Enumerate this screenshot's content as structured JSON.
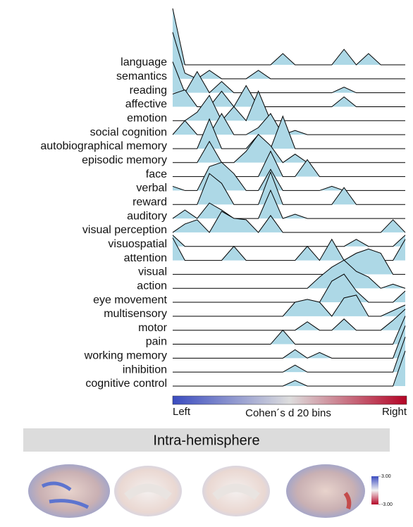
{
  "chart_data": {
    "type": "ridgeline",
    "fill_color": "#add8e6",
    "line_color": "#000000",
    "x_label_left": "Left",
    "x_label": "Cohen´s d 20 bins",
    "x_label_right": "Right",
    "series": [
      {
        "name": "language",
        "values": [
          4,
          0,
          0,
          0,
          0,
          0,
          0,
          0,
          0,
          0.8,
          0,
          0,
          0,
          0,
          1.1,
          0,
          0.8,
          0,
          0,
          0
        ]
      },
      {
        "name": "semantics",
        "values": [
          3.3,
          0.4,
          0,
          0.6,
          0,
          0,
          0,
          0.6,
          0,
          0,
          0,
          0,
          0,
          0,
          0,
          0,
          0,
          0,
          0,
          0
        ]
      },
      {
        "name": "reading",
        "values": [
          2.2,
          0,
          1.5,
          0,
          0.8,
          0,
          0,
          0,
          0,
          0,
          0,
          0,
          0,
          0,
          0.4,
          0,
          0,
          0,
          0,
          0
        ]
      },
      {
        "name": "affective",
        "values": [
          0.9,
          1.2,
          0,
          0,
          1.1,
          0,
          1.5,
          0,
          0,
          0,
          0,
          0,
          0,
          0,
          0.7,
          0,
          0,
          0,
          0,
          0
        ]
      },
      {
        "name": "emotion",
        "values": [
          0,
          0,
          0.6,
          1.8,
          0,
          1,
          0,
          2.1,
          0,
          0,
          0,
          0,
          0,
          0,
          0,
          0,
          0,
          0,
          0,
          0
        ]
      },
      {
        "name": "social cognition",
        "values": [
          0,
          1,
          0,
          0,
          1.5,
          0,
          0,
          0.5,
          1.5,
          0,
          0.3,
          0,
          0,
          0,
          0,
          0,
          0,
          0,
          0,
          0
        ]
      },
      {
        "name": "autobiographical memory",
        "values": [
          0,
          0,
          0,
          2.1,
          0,
          0,
          0,
          1,
          0,
          2.3,
          0,
          0,
          0,
          0,
          0,
          0,
          0,
          0,
          0,
          0
        ]
      },
      {
        "name": "episodic memory",
        "values": [
          0,
          0,
          0,
          1.5,
          0,
          0,
          0.8,
          2,
          1.2,
          0,
          0.6,
          0,
          0,
          0,
          0,
          0,
          0,
          0,
          0,
          0
        ]
      },
      {
        "name": "face",
        "values": [
          0,
          0,
          0,
          0,
          1,
          0,
          0,
          0,
          1.8,
          0,
          0,
          1.2,
          0,
          0,
          0,
          0,
          0,
          0,
          0,
          0
        ]
      },
      {
        "name": "verbal",
        "values": [
          0.3,
          0,
          0,
          1.7,
          2,
          1.2,
          0,
          0,
          1.5,
          0,
          0,
          0,
          0,
          0.3,
          0,
          0,
          0,
          0,
          0,
          0
        ]
      },
      {
        "name": "reward",
        "values": [
          0,
          0,
          0,
          2.2,
          1.5,
          0,
          0,
          0,
          2.3,
          0,
          0,
          0,
          0,
          0,
          1.2,
          0,
          0,
          0,
          0,
          0
        ]
      },
      {
        "name": "auditory",
        "values": [
          0,
          0.6,
          0,
          1.1,
          0.6,
          0,
          0,
          0,
          2,
          0,
          0.3,
          0,
          0,
          0,
          0,
          0,
          0,
          0,
          0,
          0
        ]
      },
      {
        "name": "visual perception",
        "values": [
          0,
          0.6,
          0.9,
          0,
          1.5,
          1,
          0.9,
          0,
          1.2,
          0,
          0,
          0,
          0,
          0,
          0,
          0,
          0,
          0,
          0.9,
          0
        ]
      },
      {
        "name": "visuospatial",
        "values": [
          0.8,
          0,
          0,
          0,
          0,
          0,
          0,
          0,
          0,
          0,
          0,
          0,
          0,
          0,
          0,
          0.5,
          0,
          0,
          0,
          0.8
        ]
      },
      {
        "name": "attention",
        "values": [
          1.6,
          0,
          0,
          0,
          0,
          1,
          0,
          0,
          0,
          0,
          0,
          1,
          0,
          1.5,
          0,
          0,
          0,
          0,
          0,
          1.5
        ]
      },
      {
        "name": "visual",
        "values": [
          0,
          0,
          0,
          0,
          0,
          0,
          0,
          0,
          0,
          0,
          0,
          0,
          0,
          0,
          1,
          1.5,
          1.8,
          1.5,
          0,
          0
        ]
      },
      {
        "name": "action",
        "values": [
          0,
          0,
          0,
          0,
          0,
          0,
          0,
          0,
          0,
          0,
          0,
          0,
          0.8,
          1.5,
          2,
          1.2,
          0.8,
          0,
          0.3,
          0
        ]
      },
      {
        "name": "eye movement",
        "values": [
          0,
          0,
          0,
          0,
          0,
          0,
          0,
          0,
          0,
          0,
          0,
          0,
          0,
          1.5,
          2,
          0.8,
          0,
          0,
          0,
          0.8
        ]
      },
      {
        "name": "multisensory",
        "values": [
          0,
          0,
          0,
          0,
          0,
          0,
          0,
          0,
          0,
          0,
          1,
          1.2,
          1,
          0,
          1.3,
          1.5,
          0,
          0,
          0.4,
          0.8
        ]
      },
      {
        "name": "motor",
        "values": [
          0,
          0,
          0,
          0,
          0,
          0,
          0,
          0,
          0,
          0,
          0,
          0.6,
          0,
          0,
          0.8,
          0,
          0,
          0,
          0.7,
          1.5
        ]
      },
      {
        "name": "pain",
        "values": [
          0,
          0,
          0,
          0,
          0,
          0,
          0,
          0,
          0,
          1,
          0,
          0,
          0,
          0,
          0,
          0,
          0,
          0,
          0,
          2
        ]
      },
      {
        "name": "working memory",
        "values": [
          0,
          0,
          0,
          0,
          0,
          0,
          0,
          0,
          0,
          0,
          0.6,
          0,
          0.4,
          0,
          0,
          0,
          0,
          0,
          0,
          2.3
        ]
      },
      {
        "name": "inhibition",
        "values": [
          0,
          0,
          0,
          0,
          0,
          0,
          0,
          0,
          0,
          0,
          0.5,
          0,
          0,
          0,
          0,
          0,
          0,
          0,
          0,
          2.5
        ]
      },
      {
        "name": "cognitive control",
        "values": [
          0,
          0,
          0,
          0,
          0,
          0,
          0,
          0,
          0,
          0,
          0.4,
          0,
          0,
          0,
          0,
          0,
          0,
          0,
          0,
          2.5
        ]
      }
    ]
  },
  "brain_panel": {
    "title": "Intra-hemisphere",
    "colorbar_ticks": [
      {
        "value": 3,
        "label": "3.00"
      },
      {
        "value": -3,
        "label": "-3.00"
      }
    ]
  }
}
